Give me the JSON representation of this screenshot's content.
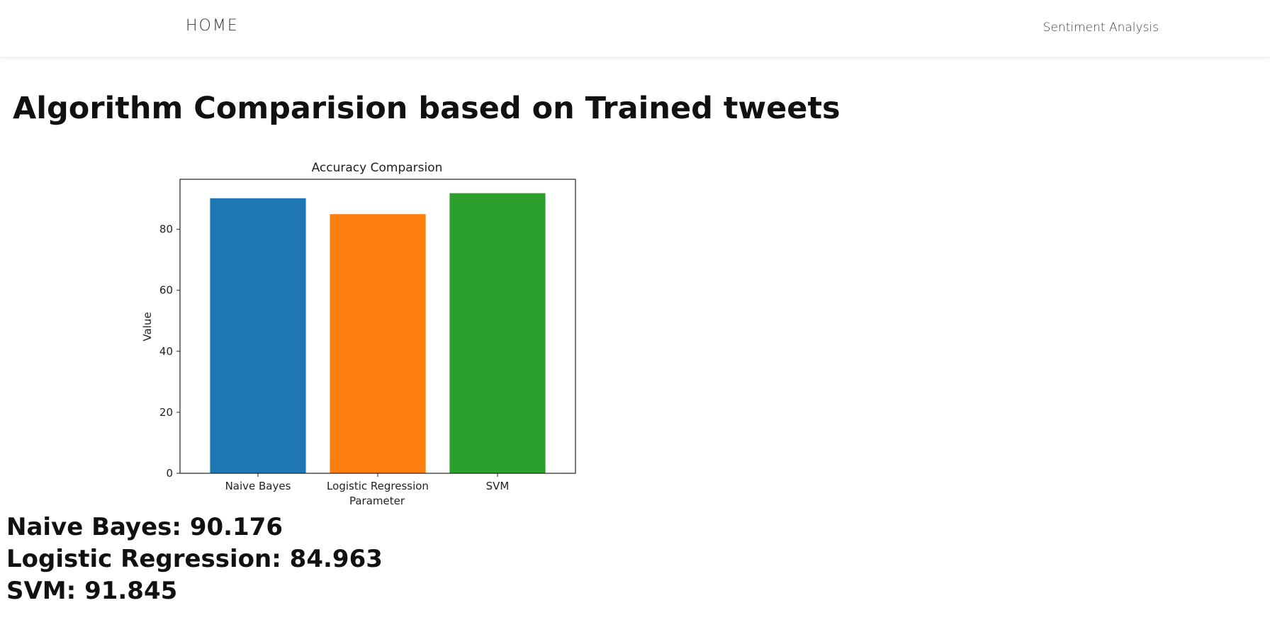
{
  "nav": {
    "home_label": "HOME",
    "brand_label": "Sentiment Analysis"
  },
  "page_title": "Algorithm Comparision based on Trained tweets",
  "chart_data": {
    "type": "bar",
    "title": "Accuracy Comparsion",
    "xlabel": "Parameter",
    "ylabel": "Value",
    "categories": [
      "Naive Bayes",
      "Logistic Regression",
      "SVM"
    ],
    "values": [
      90.176,
      84.963,
      91.845
    ],
    "colors": [
      "#1f77b4",
      "#ff7f0e",
      "#2ca02c"
    ],
    "ylim": [
      0,
      96.4
    ],
    "yticks": [
      0,
      20,
      40,
      60,
      80
    ],
    "grid": false
  },
  "results": [
    {
      "label": "Naive Bayes",
      "value": "90.176"
    },
    {
      "label": "Logistic Regression",
      "value": "84.963"
    },
    {
      "label": "SVM",
      "value": "91.845"
    }
  ]
}
